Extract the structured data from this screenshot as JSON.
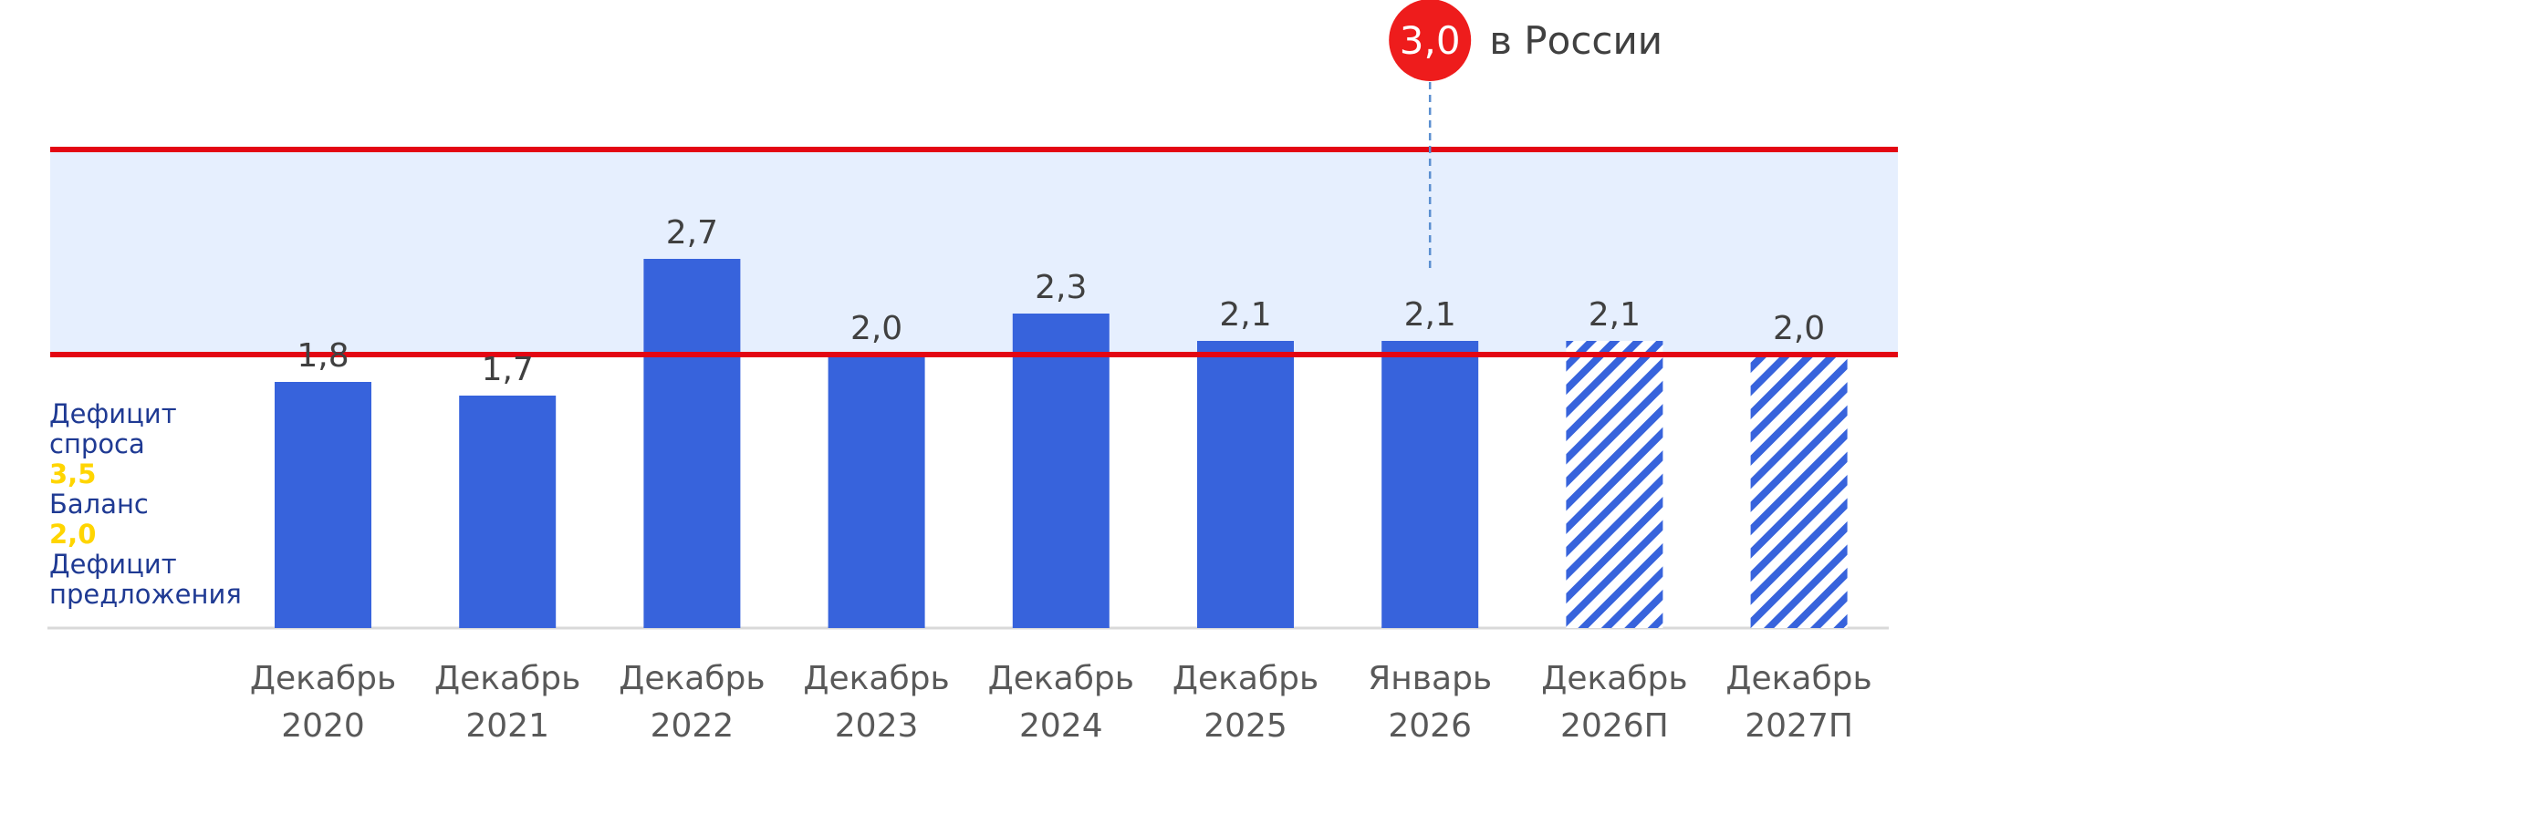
{
  "chart_data": {
    "type": "bar",
    "categories": [
      [
        "Декабрь",
        "2020"
      ],
      [
        "Декабрь",
        "2021"
      ],
      [
        "Декабрь",
        "2022"
      ],
      [
        "Декабрь",
        "2023"
      ],
      [
        "Декабрь",
        "2024"
      ],
      [
        "Декабрь",
        "2025"
      ],
      [
        "Январь",
        "2026"
      ],
      [
        "Декабрь",
        "2026П"
      ],
      [
        "Декабрь",
        "2027П"
      ]
    ],
    "values": [
      1.8,
      1.7,
      2.7,
      2.0,
      2.3,
      2.1,
      2.1,
      2.1,
      2.0
    ],
    "value_labels": [
      "1,8",
      "1,7",
      "2,7",
      "2,0",
      "2,3",
      "2,1",
      "2,1",
      "2,1",
      "2,0"
    ],
    "forecast": [
      false,
      false,
      false,
      false,
      false,
      false,
      false,
      true,
      true
    ],
    "ylim": [
      0,
      3.5
    ],
    "reference_lines": [
      {
        "value": 3.5,
        "label": "3,5",
        "color": "#e30613"
      },
      {
        "value": 2.0,
        "label": "2,0",
        "color": "#e30613"
      }
    ],
    "band_color": "#e6effe",
    "bar_color": "#3763dc",
    "zones": [
      "Дефицит спроса",
      "Баланс",
      "Дефицит предложения"
    ],
    "callout": {
      "value": "3,0",
      "text": "в России",
      "category_index": 6,
      "color": "#ee1c1c"
    },
    "grid": false,
    "legend": "left"
  },
  "side_labels": {
    "line1": "Дефицит",
    "line2": "спроса",
    "num1": "3,5",
    "line3": "Баланс",
    "num2": "2,0",
    "line4": "Дефицит",
    "line5": "предложения"
  }
}
